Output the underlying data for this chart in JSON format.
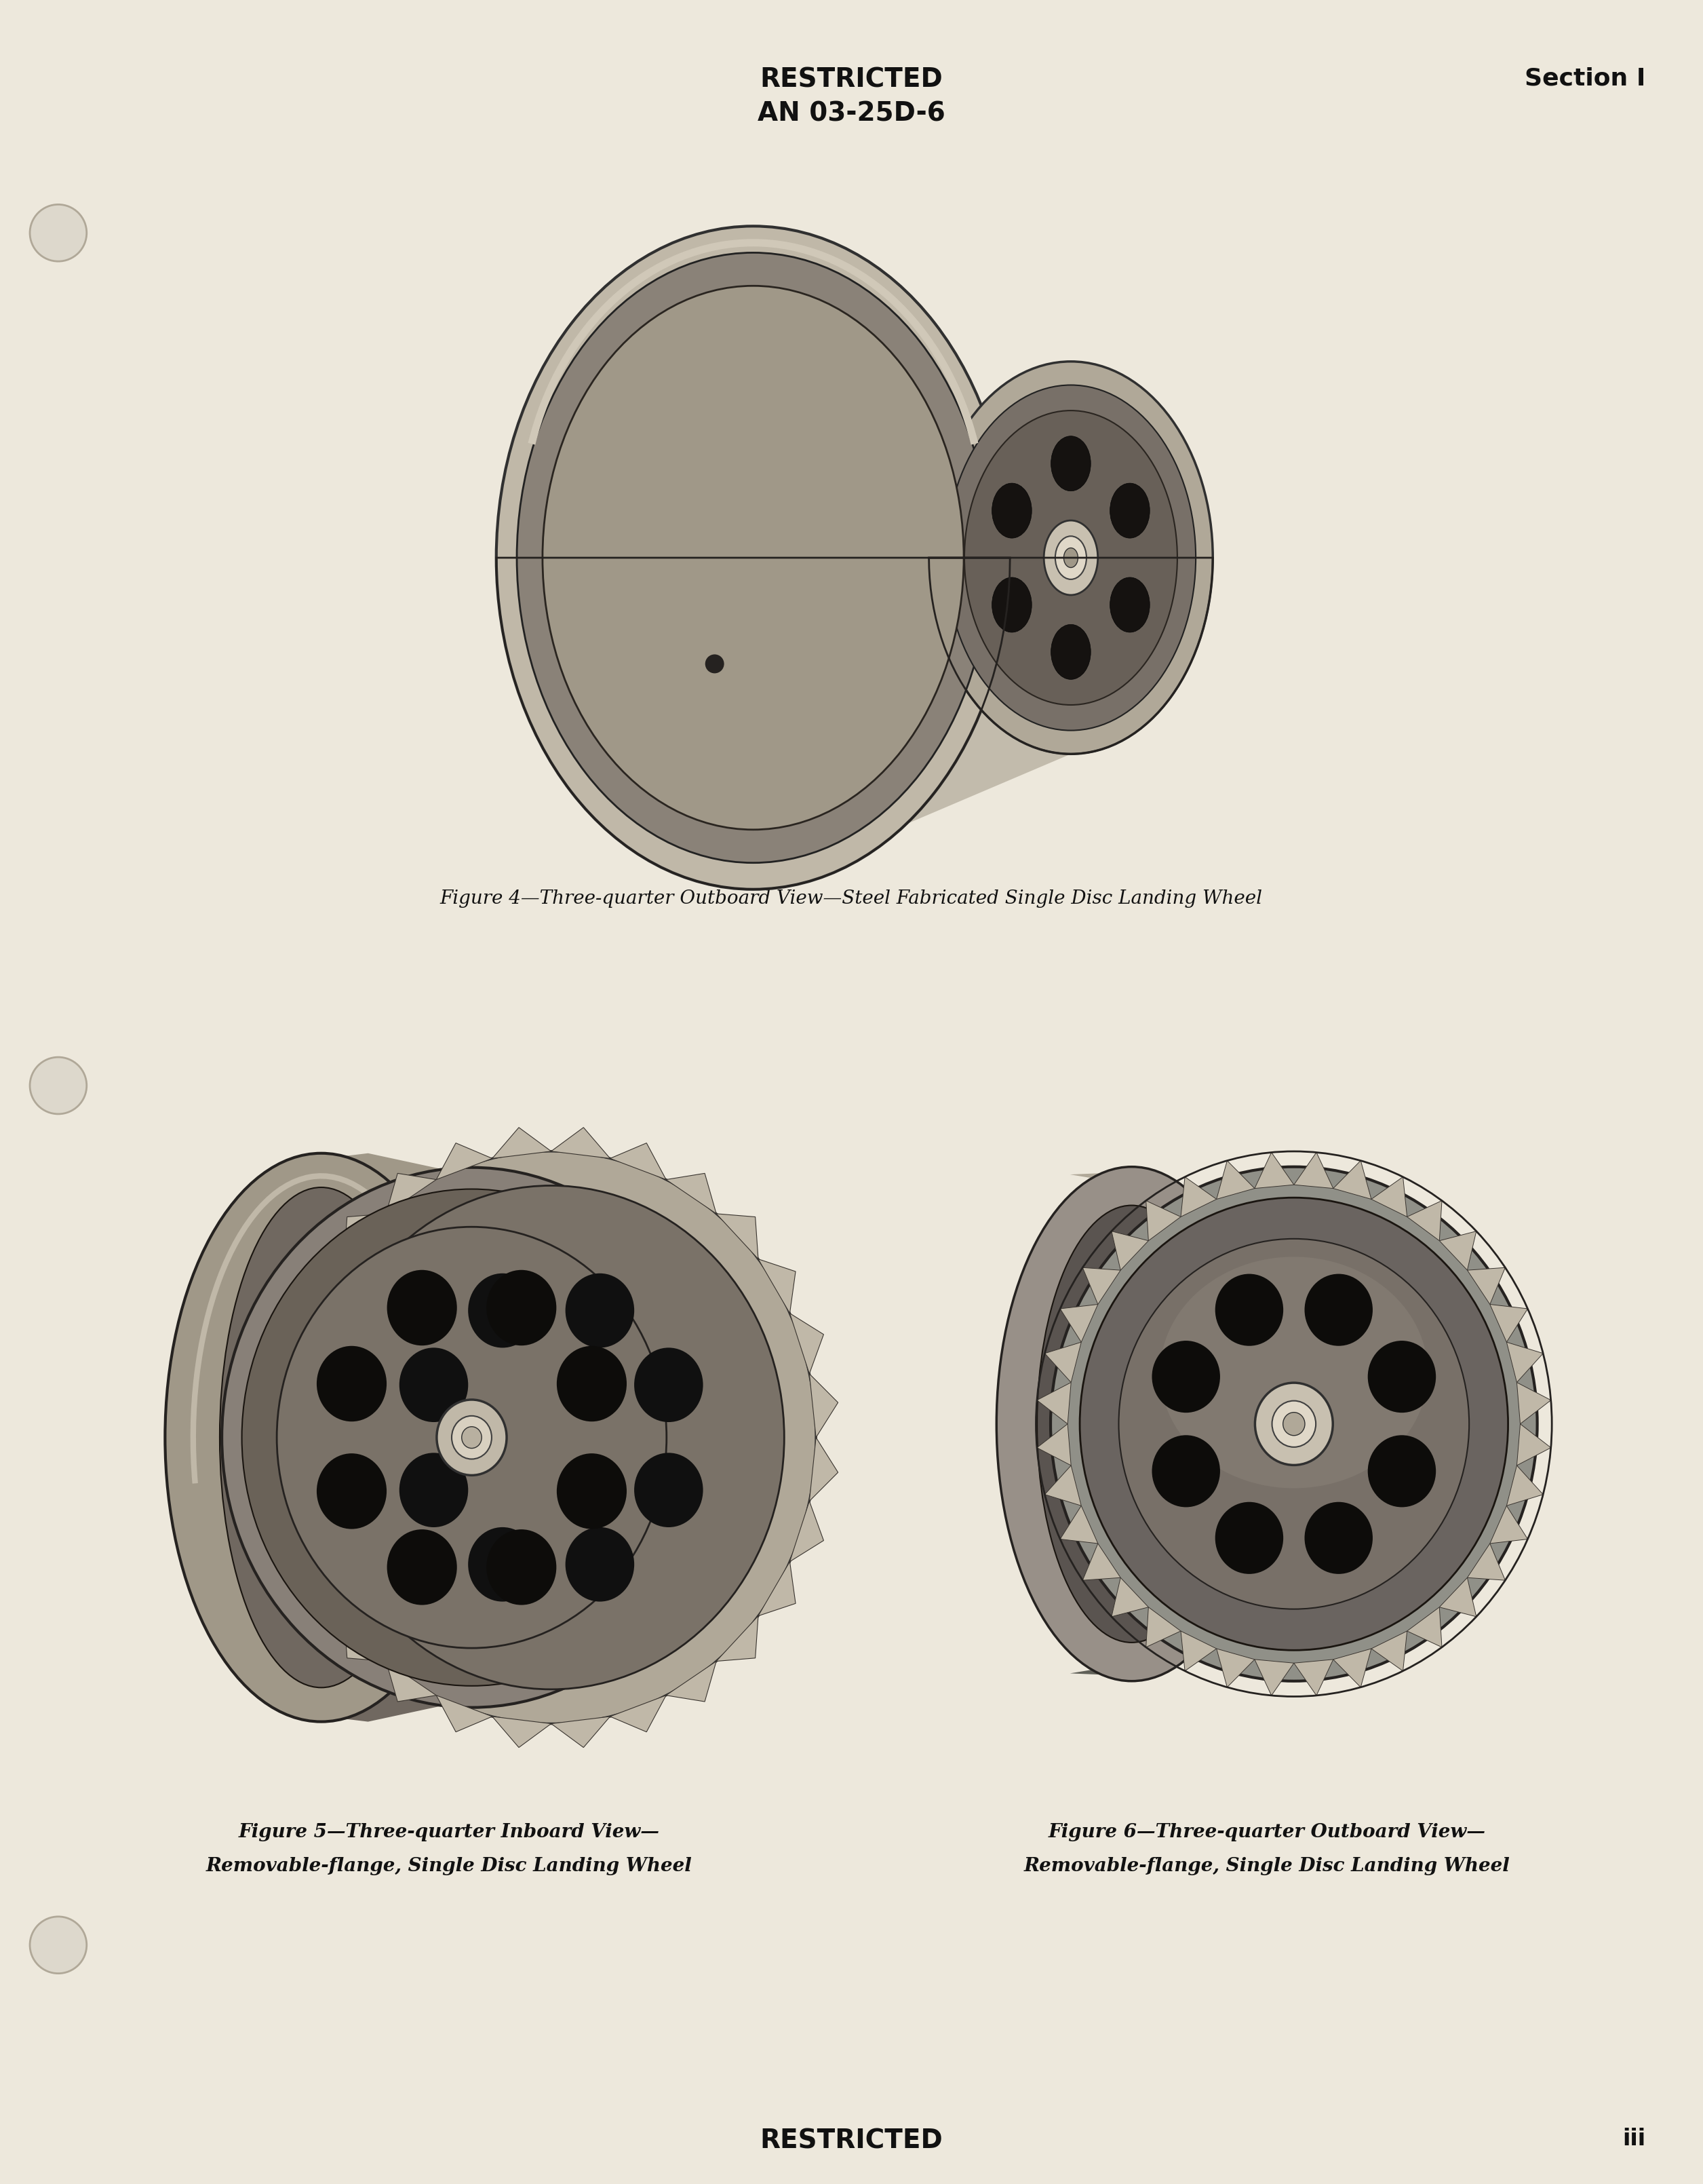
{
  "background_color": "#ede8dc",
  "page_width": 25.11,
  "page_height": 32.19,
  "top_center_line1": "RESTRICTED",
  "top_center_line2": "AN 03-25D-6",
  "top_right": "Section I",
  "bottom_center": "RESTRICTED",
  "bottom_right": "iii",
  "fig1_caption": "Figure 4—Three-quarter Outboard View—Steel Fabricated Single Disc Landing Wheel",
  "fig2_caption_line1": "Figure 5—Three-quarter Inboard View—",
  "fig2_caption_line2": "Removable-flange, Single Disc Landing Wheel",
  "fig3_caption_line1": "Figure 6—Three-quarter Outboard View—",
  "fig3_caption_line2": "Removable-flange, Single Disc Landing Wheel",
  "text_color": "#111111",
  "header_fontsize": 28,
  "section_fontsize": 26,
  "caption_fontsize": 20,
  "page_number_fontsize": 24
}
